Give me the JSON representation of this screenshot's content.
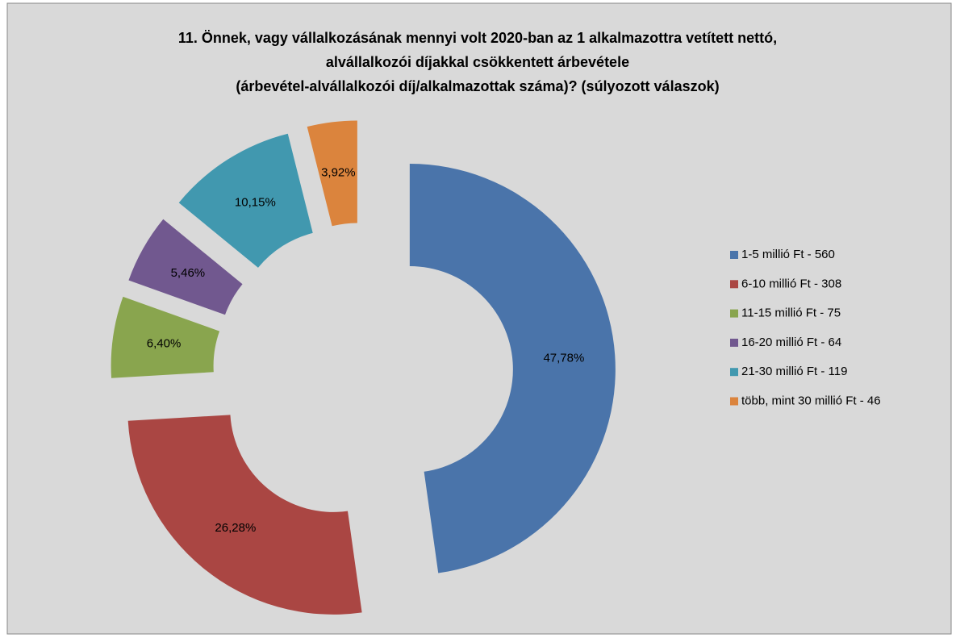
{
  "chart_data": {
    "type": "donut",
    "title": [
      "11. Önnek, vagy vállalkozásának mennyi volt 2020-ban az 1 alkalmazottra vetített nettó,",
      "alvállalkozói díjakkal csökkentett árbevétele",
      "(árbevétel-alvállalkozói díj/alkalmazottak száma)? (súlyozott válaszok)"
    ],
    "categories": [
      "1-5 millió Ft - 560",
      "6-10 millió Ft - 308",
      "11-15 millió Ft - 75",
      "16-20 millió Ft - 64",
      "21-30 millió Ft - 119",
      "több, mint 30 millió Ft - 46"
    ],
    "values": [
      47.78,
      26.28,
      6.4,
      5.46,
      10.15,
      3.92
    ],
    "value_labels": [
      "47,78%",
      "26,28%",
      "6,40%",
      "5,46%",
      "10,15%",
      "3,92%"
    ],
    "colors": [
      "#4a74aa",
      "#aa4643",
      "#89a54e",
      "#71588f",
      "#4198af",
      "#db843d"
    ],
    "legend": "right"
  }
}
